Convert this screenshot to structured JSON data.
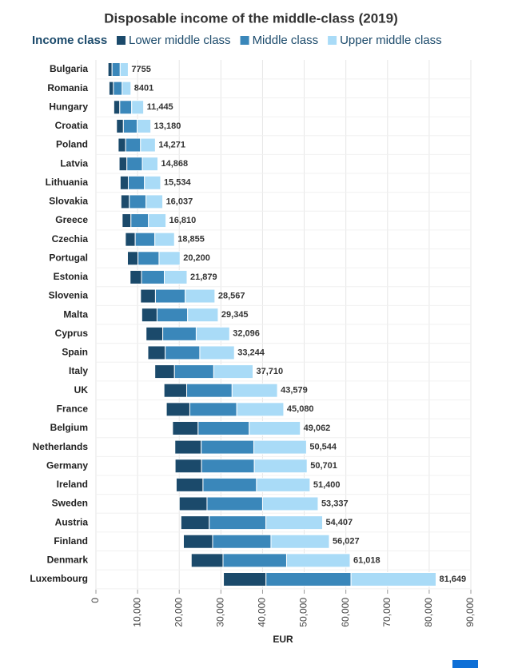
{
  "chart_data": {
    "type": "floating-bar",
    "title": "Disposable income of the middle-class (2019)",
    "legend_title": "Income class",
    "x_label": "EUR",
    "categories": [
      "Bulgaria",
      "Romania",
      "Hungary",
      "Croatia",
      "Poland",
      "Latvia",
      "Lithuania",
      "Slovakia",
      "Greece",
      "Czechia",
      "Portugal",
      "Estonia",
      "Slovenia",
      "Malta",
      "Cyprus",
      "Spain",
      "Italy",
      "UK",
      "France",
      "Belgium",
      "Netherlands",
      "Germany",
      "Ireland",
      "Sweden",
      "Austria",
      "Finland",
      "Denmark",
      "Luxembourg"
    ],
    "series": [
      {
        "name": "Lower middle class",
        "color": "#1b4a6b",
        "values": [
          [
            2908,
            3878
          ],
          [
            3150,
            4201
          ],
          [
            4292,
            5723
          ],
          [
            4943,
            6590
          ],
          [
            5352,
            7136
          ],
          [
            5576,
            7434
          ],
          [
            5825,
            7767
          ],
          [
            6014,
            8019
          ],
          [
            6304,
            8405
          ],
          [
            7071,
            9428
          ],
          [
            7575,
            10100
          ],
          [
            8205,
            10940
          ],
          [
            10713,
            14284
          ],
          [
            11004,
            14673
          ],
          [
            12036,
            16048
          ],
          [
            12467,
            16622
          ],
          [
            14141,
            18855
          ],
          [
            16342,
            21790
          ],
          [
            16905,
            22540
          ],
          [
            18398,
            24531
          ],
          [
            18954,
            25272
          ],
          [
            19013,
            25351
          ],
          [
            19275,
            25700
          ],
          [
            20001,
            26669
          ],
          [
            20403,
            27204
          ],
          [
            21010,
            28014
          ],
          [
            22882,
            30509
          ],
          [
            30618,
            40825
          ]
        ]
      },
      {
        "name": "Middle class",
        "color": "#3a87ba",
        "values": [
          [
            3878,
            5816
          ],
          [
            4201,
            6301
          ],
          [
            5723,
            8584
          ],
          [
            6590,
            9885
          ],
          [
            7136,
            10703
          ],
          [
            7434,
            11151
          ],
          [
            7767,
            11651
          ],
          [
            8019,
            12028
          ],
          [
            8405,
            12608
          ],
          [
            9428,
            14141
          ],
          [
            10100,
            15150
          ],
          [
            10940,
            16409
          ],
          [
            14284,
            21425
          ],
          [
            14673,
            22009
          ],
          [
            16048,
            24072
          ],
          [
            16622,
            24933
          ],
          [
            18855,
            28283
          ],
          [
            21790,
            32684
          ],
          [
            22540,
            33810
          ],
          [
            24531,
            36797
          ],
          [
            25272,
            37908
          ],
          [
            25351,
            38026
          ],
          [
            25700,
            38550
          ],
          [
            26669,
            40003
          ],
          [
            27204,
            40805
          ],
          [
            28014,
            42020
          ],
          [
            30509,
            45764
          ],
          [
            40825,
            61237
          ]
        ]
      },
      {
        "name": "Upper middle class",
        "color": "#a9dbf7",
        "values": [
          [
            5816,
            7755
          ],
          [
            6301,
            8401
          ],
          [
            8584,
            11445
          ],
          [
            9885,
            13180
          ],
          [
            10703,
            14271
          ],
          [
            11151,
            14868
          ],
          [
            11651,
            15534
          ],
          [
            12028,
            16037
          ],
          [
            12608,
            16810
          ],
          [
            14141,
            18855
          ],
          [
            15150,
            20200
          ],
          [
            16409,
            21879
          ],
          [
            21425,
            28567
          ],
          [
            22009,
            29345
          ],
          [
            24072,
            32096
          ],
          [
            24933,
            33244
          ],
          [
            28283,
            37710
          ],
          [
            32684,
            43579
          ],
          [
            33810,
            45080
          ],
          [
            36797,
            49062
          ],
          [
            37908,
            50544
          ],
          [
            38026,
            50701
          ],
          [
            38550,
            51400
          ],
          [
            40003,
            53337
          ],
          [
            40805,
            54407
          ],
          [
            42020,
            56027
          ],
          [
            45764,
            61018
          ],
          [
            61237,
            81649
          ]
        ],
        "value_labels": [
          "7755",
          "8401",
          "11,445",
          "13,180",
          "14,271",
          "14,868",
          "15,534",
          "16,037",
          "16,810",
          "18,855",
          "20,200",
          "21,879",
          "28,567",
          "29,345",
          "32,096",
          "33,244",
          "37,710",
          "43,579",
          "45,080",
          "49,062",
          "50,544",
          "50,701",
          "51,400",
          "53,337",
          "54,407",
          "56,027",
          "61,018",
          "81,649"
        ]
      }
    ],
    "xlim": [
      0,
      90000
    ],
    "xticks": [
      0,
      {
        "value": 10000,
        "label": "10,000"
      },
      {
        "value": 20000,
        "label": "20,000"
      },
      {
        "value": 30000,
        "label": "30,000"
      },
      {
        "value": 40000,
        "label": "40,000"
      },
      {
        "value": 50000,
        "label": "50,000"
      },
      {
        "value": 60000,
        "label": "60,000"
      },
      {
        "value": 70000,
        "label": "70,000"
      },
      {
        "value": 80000,
        "label": "80,000"
      },
      {
        "value": 90000,
        "label": "90,000"
      }
    ],
    "grid": true
  }
}
